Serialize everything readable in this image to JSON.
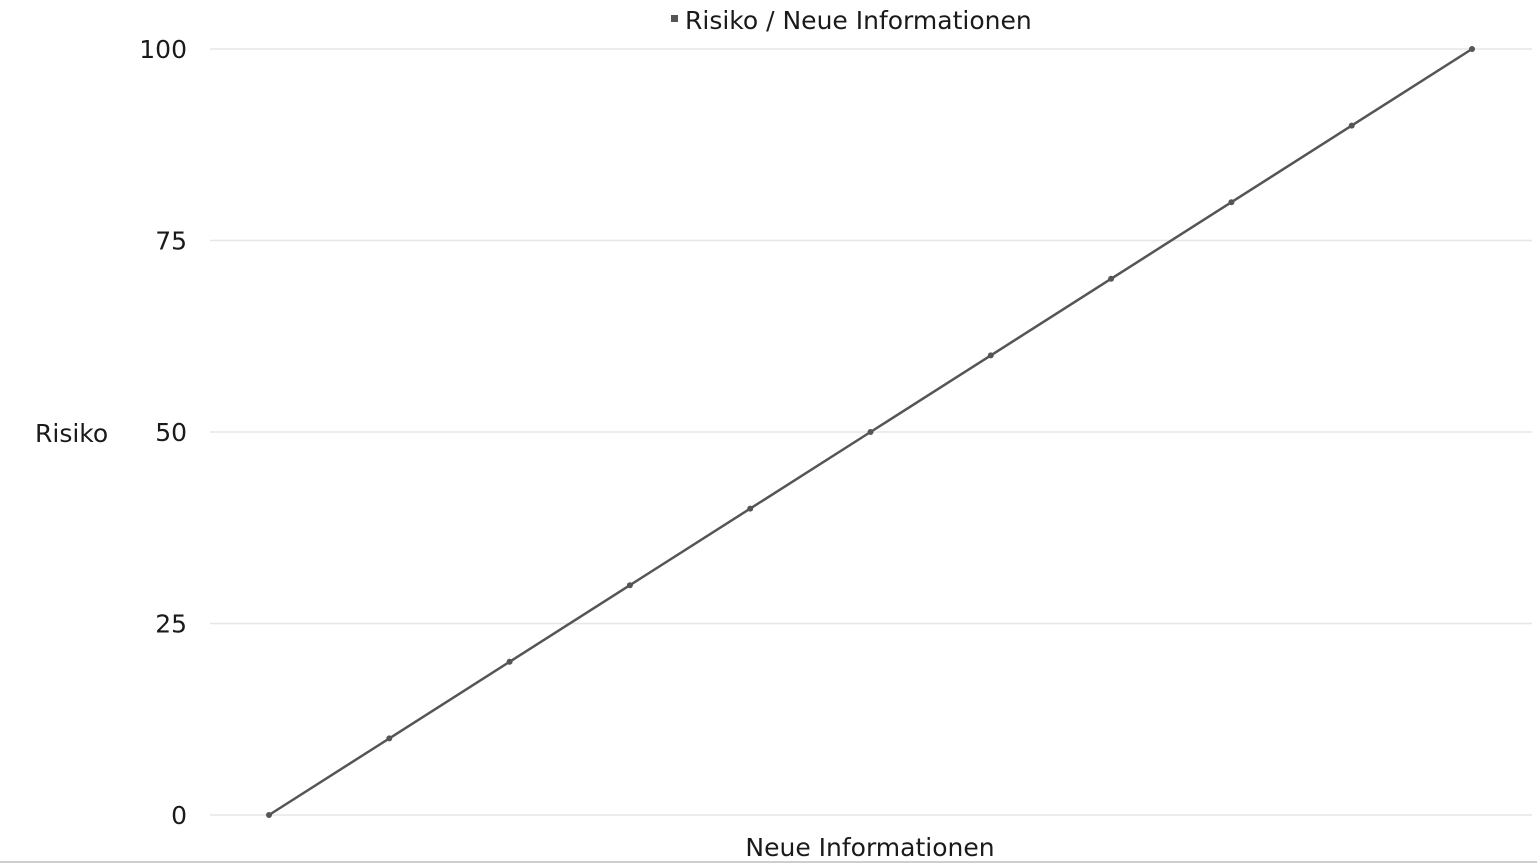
{
  "chart_data": {
    "type": "line",
    "title": "",
    "xlabel": "Neue Informationen",
    "ylabel": "Risiko",
    "ylim": [
      0,
      100
    ],
    "yticks": [
      "0",
      "25",
      "50",
      "75",
      "100"
    ],
    "grid": true,
    "legend_position": "top-center",
    "series": [
      {
        "name": "Risiko / Neue Informationen",
        "color": "#555555",
        "x": [
          0,
          1,
          2,
          3,
          4,
          5,
          6,
          7,
          8,
          9,
          10
        ],
        "values": [
          0,
          10,
          20,
          30,
          40,
          50,
          60,
          70,
          80,
          90,
          100
        ]
      }
    ]
  }
}
